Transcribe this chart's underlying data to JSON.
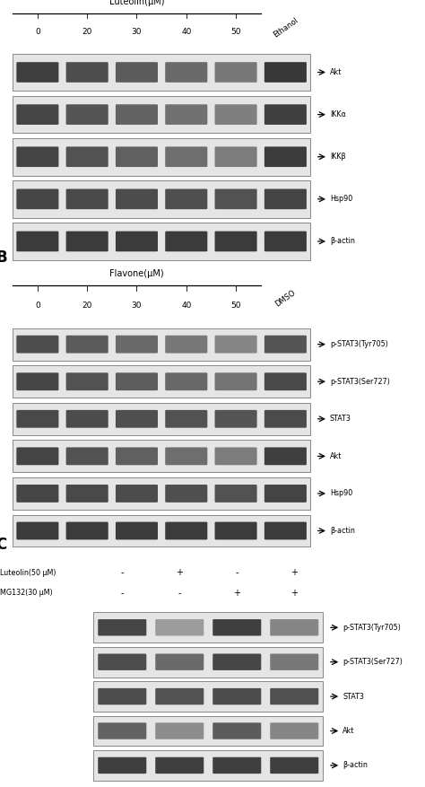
{
  "panel_A": {
    "title": "Luteolin(μM)",
    "extra_label": "Ethanol",
    "concentrations": [
      "0",
      "20",
      "30",
      "40",
      "50"
    ],
    "bands": [
      "Akt",
      "IKKα",
      "IKKβ",
      "Hsp90",
      "β-actin"
    ],
    "band_patterns": {
      "Akt": [
        0.85,
        0.75,
        0.65,
        0.55,
        0.45,
        0.9
      ],
      "IKKα": [
        0.8,
        0.7,
        0.6,
        0.5,
        0.4,
        0.85
      ],
      "IKKβ": [
        0.82,
        0.72,
        0.62,
        0.52,
        0.42,
        0.87
      ],
      "Hsp90": [
        0.8,
        0.78,
        0.76,
        0.74,
        0.72,
        0.82
      ],
      "β-actin": [
        0.88,
        0.88,
        0.88,
        0.88,
        0.88,
        0.88
      ]
    }
  },
  "panel_B": {
    "title": "Flavone(μM)",
    "extra_label": "DMSO",
    "concentrations": [
      "0",
      "20",
      "30",
      "40",
      "50"
    ],
    "bands": [
      "p-STAT3(Tyr705)",
      "p-STAT3(Ser727)",
      "STAT3",
      "Akt",
      "Hsp90",
      "β-actin"
    ],
    "band_patterns": {
      "p-STAT3(Tyr705)": [
        0.75,
        0.65,
        0.55,
        0.45,
        0.35,
        0.7
      ],
      "p-STAT3(Ser727)": [
        0.8,
        0.72,
        0.64,
        0.56,
        0.48,
        0.78
      ],
      "STAT3": [
        0.78,
        0.76,
        0.74,
        0.72,
        0.7,
        0.77
      ],
      "Akt": [
        0.82,
        0.72,
        0.62,
        0.52,
        0.42,
        0.85
      ],
      "Hsp90": [
        0.8,
        0.78,
        0.76,
        0.74,
        0.72,
        0.82
      ],
      "β-actin": [
        0.88,
        0.88,
        0.88,
        0.88,
        0.88,
        0.88
      ]
    }
  },
  "panel_C": {
    "row1_label": "Luteolin(50 μM)",
    "row2_label": "MG132(30 μM)",
    "row1_vals": [
      "-",
      "+",
      "-",
      "+"
    ],
    "row2_vals": [
      "-",
      "-",
      "+",
      "+"
    ],
    "bands": [
      "p-STAT3(Tyr705)",
      "p-STAT3(Ser727)",
      "STAT3",
      "Akt",
      "β-actin"
    ],
    "band_patterns": {
      "p-STAT3(Tyr705)": [
        0.8,
        0.2,
        0.85,
        0.35
      ],
      "p-STAT3(Ser727)": [
        0.75,
        0.55,
        0.8,
        0.45
      ],
      "STAT3": [
        0.75,
        0.72,
        0.76,
        0.73
      ],
      "Akt": [
        0.6,
        0.3,
        0.65,
        0.35
      ],
      "β-actin": [
        0.85,
        0.85,
        0.85,
        0.85
      ]
    }
  },
  "band_color_dark": "#2a2a2a",
  "band_color_light": "#b8b8b8"
}
